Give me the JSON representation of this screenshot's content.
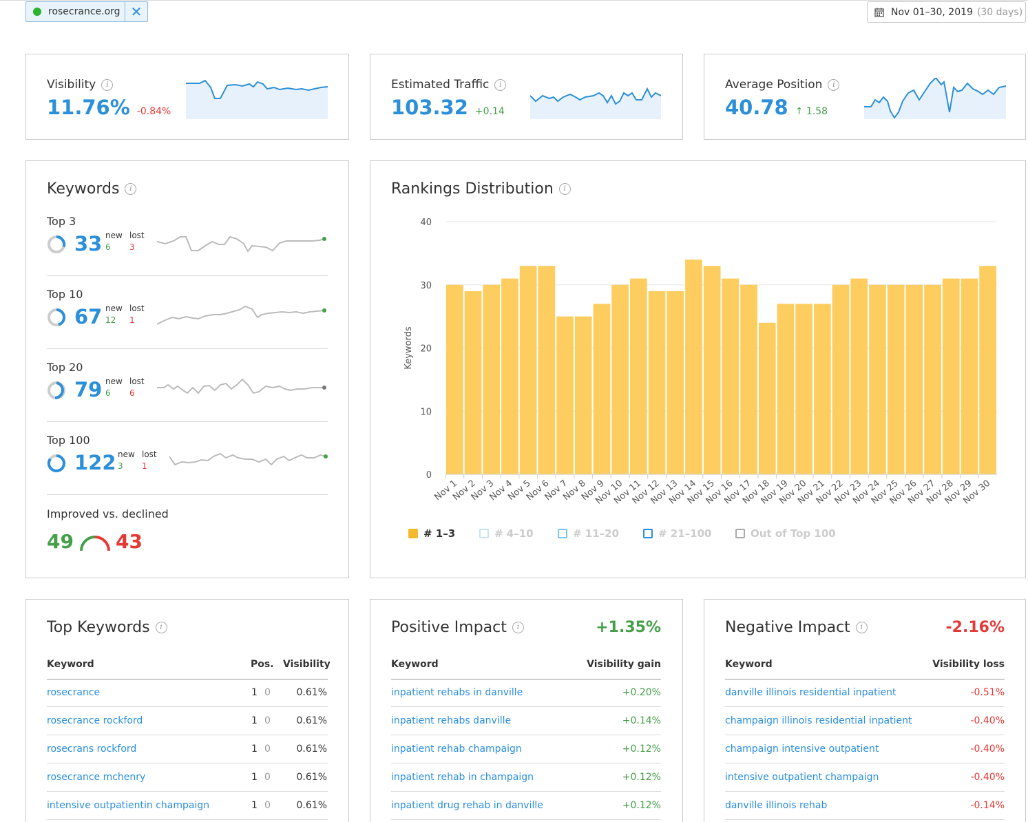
{
  "domain": {
    "name": "rosecrance.org",
    "close_glyph": "✕"
  },
  "date_range": {
    "label": "Nov 01–30, 2019",
    "days": "(30 days)"
  },
  "kpis": [
    {
      "title": "Visibility",
      "value": "11.76%",
      "delta": "-0.84%"
    },
    {
      "title": "Estimated Traffic",
      "value": "103.32",
      "delta": "+0.14"
    },
    {
      "title": "Average Position",
      "value": "40.78",
      "delta": "↑ 1.58"
    }
  ],
  "keywords": {
    "title": "Keywords",
    "groups": [
      {
        "label": "Top 3",
        "value": "33",
        "new_label": "new",
        "lost_label": "lost",
        "new": "6",
        "lost": "3"
      },
      {
        "label": "Top 10",
        "value": "67",
        "new_label": "new",
        "lost_label": "lost",
        "new": "12",
        "lost": "1"
      },
      {
        "label": "Top 20",
        "value": "79",
        "new_label": "new",
        "lost_label": "lost",
        "new": "6",
        "lost": "6"
      },
      {
        "label": "Top 100",
        "value": "122",
        "new_label": "new",
        "lost_label": "lost",
        "new": "3",
        "lost": "1"
      }
    ],
    "improved_label": "Improved vs. declined",
    "improved": "49",
    "declined": "43"
  },
  "rankings": {
    "title": "Rankings Distribution",
    "legend": [
      {
        "label": "# 1–3",
        "color": "#f5b92e",
        "active": true
      },
      {
        "label": "# 4–10",
        "color": "#c3e3f7",
        "active": false
      },
      {
        "label": "# 11–20",
        "color": "#7fc4ef",
        "active": false
      },
      {
        "label": "# 21–100",
        "color": "#2a8ee0",
        "active": false
      },
      {
        "label": "Out of Top 100",
        "color": "#aaaaaa",
        "active": false
      }
    ]
  },
  "chart_data": {
    "type": "bar",
    "ylabel": "Keywords",
    "ylim": [
      0,
      40
    ],
    "yticks": [
      0,
      10,
      20,
      30,
      40
    ],
    "categories": [
      "Nov 1",
      "Nov 2",
      "Nov 3",
      "Nov 4",
      "Nov 5",
      "Nov 6",
      "Nov 7",
      "Nov 8",
      "Nov 9",
      "Nov 10",
      "Nov 11",
      "Nov 12",
      "Nov 13",
      "Nov 14",
      "Nov 15",
      "Nov 16",
      "Nov 17",
      "Nov 18",
      "Nov 19",
      "Nov 20",
      "Nov 21",
      "Nov 22",
      "Nov 23",
      "Nov 24",
      "Nov 25",
      "Nov 26",
      "Nov 27",
      "Nov 28",
      "Nov 29",
      "Nov 30"
    ],
    "series": [
      {
        "name": "# 1–3",
        "values": [
          30,
          29,
          30,
          31,
          33,
          33,
          25,
          25,
          27,
          30,
          31,
          29,
          29,
          34,
          33,
          31,
          30,
          24,
          27,
          27,
          27,
          30,
          31,
          30,
          30,
          30,
          30,
          31,
          31,
          33
        ]
      }
    ],
    "color": "#fdcd5f"
  },
  "top_keywords": {
    "title": "Top Keywords",
    "headers": {
      "keyword": "Keyword",
      "pos": "Pos.",
      "visibility": "Visibility"
    },
    "rows": [
      {
        "keyword": "rosecrance",
        "pos": "1",
        "diff": "0",
        "visibility": "0.61%"
      },
      {
        "keyword": "rosecrance rockford",
        "pos": "1",
        "diff": "0",
        "visibility": "0.61%"
      },
      {
        "keyword": "rosecrans rockford",
        "pos": "1",
        "diff": "0",
        "visibility": "0.61%"
      },
      {
        "keyword": "rosecrance mchenry",
        "pos": "1",
        "diff": "0",
        "visibility": "0.61%"
      },
      {
        "keyword": "intensive outpatientin champaign",
        "pos": "1",
        "diff": "0",
        "visibility": "0.61%"
      }
    ]
  },
  "positive_impact": {
    "title": "Positive Impact",
    "total": "+1.35%",
    "headers": {
      "keyword": "Keyword",
      "value": "Visibility gain"
    },
    "rows": [
      {
        "keyword": "inpatient rehabs in danville",
        "value": "+0.20%"
      },
      {
        "keyword": "inpatient rehabs danville",
        "value": "+0.14%"
      },
      {
        "keyword": "inpatient rehab champaign",
        "value": "+0.12%"
      },
      {
        "keyword": "inpatient rehab in champaign",
        "value": "+0.12%"
      },
      {
        "keyword": "inpatient drug rehab in danville",
        "value": "+0.12%"
      }
    ]
  },
  "negative_impact": {
    "title": "Negative Impact",
    "total": "-2.16%",
    "headers": {
      "keyword": "Keyword",
      "value": "Visibility loss"
    },
    "rows": [
      {
        "keyword": "danville illinois residential inpatient",
        "value": "-0.51%"
      },
      {
        "keyword": "champaign illinois residential inpatient",
        "value": "-0.40%"
      },
      {
        "keyword": "champaign intensive outpatient",
        "value": "-0.40%"
      },
      {
        "keyword": "intensive outpatient champaign",
        "value": "-0.40%"
      },
      {
        "keyword": "danville illinois rehab",
        "value": "-0.14%"
      }
    ]
  }
}
